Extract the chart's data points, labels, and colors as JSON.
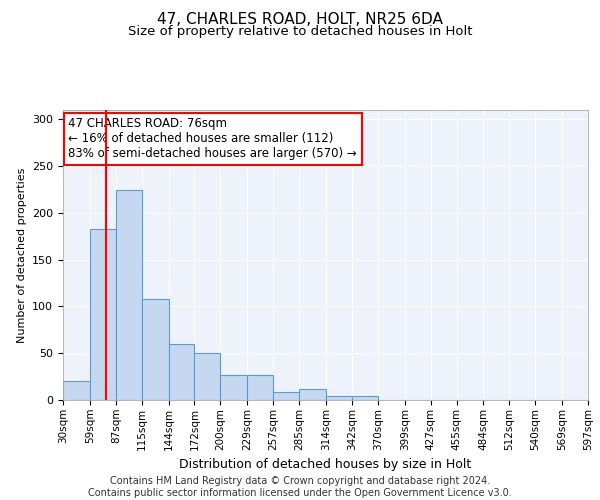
{
  "title1": "47, CHARLES ROAD, HOLT, NR25 6DA",
  "title2": "Size of property relative to detached houses in Holt",
  "xlabel": "Distribution of detached houses by size in Holt",
  "ylabel": "Number of detached properties",
  "bar_values": [
    20,
    183,
    225,
    108,
    60,
    50,
    27,
    27,
    9,
    12,
    4,
    4,
    0,
    0,
    0,
    0,
    0,
    0,
    0,
    0
  ],
  "bar_edges": [
    30,
    59,
    87,
    115,
    144,
    172,
    200,
    229,
    257,
    285,
    314,
    342,
    370,
    399,
    427,
    455,
    484,
    512,
    540,
    569,
    597
  ],
  "tick_labels": [
    "30sqm",
    "59sqm",
    "87sqm",
    "115sqm",
    "144sqm",
    "172sqm",
    "200sqm",
    "229sqm",
    "257sqm",
    "285sqm",
    "314sqm",
    "342sqm",
    "370sqm",
    "399sqm",
    "427sqm",
    "455sqm",
    "484sqm",
    "512sqm",
    "540sqm",
    "569sqm",
    "597sqm"
  ],
  "bar_color": "#c5d8f0",
  "bar_edgecolor": "#5b9bd5",
  "vline_x": 76,
  "vline_color": "red",
  "annotation_text": "47 CHARLES ROAD: 76sqm\n← 16% of detached houses are smaller (112)\n83% of semi-detached houses are larger (570) →",
  "annotation_box_color": "white",
  "annotation_box_edgecolor": "red",
  "ylim": [
    0,
    310
  ],
  "yticks": [
    0,
    50,
    100,
    150,
    200,
    250,
    300
  ],
  "footer_text": "Contains HM Land Registry data © Crown copyright and database right 2024.\nContains public sector information licensed under the Open Government Licence v3.0.",
  "bg_color": "#eef2fb",
  "grid_color": "#ffffff",
  "title1_fontsize": 11,
  "title2_fontsize": 9.5,
  "annotation_fontsize": 8.5,
  "ylabel_fontsize": 8,
  "xlabel_fontsize": 9,
  "footer_fontsize": 7,
  "tick_fontsize": 7.5,
  "ytick_fontsize": 8
}
